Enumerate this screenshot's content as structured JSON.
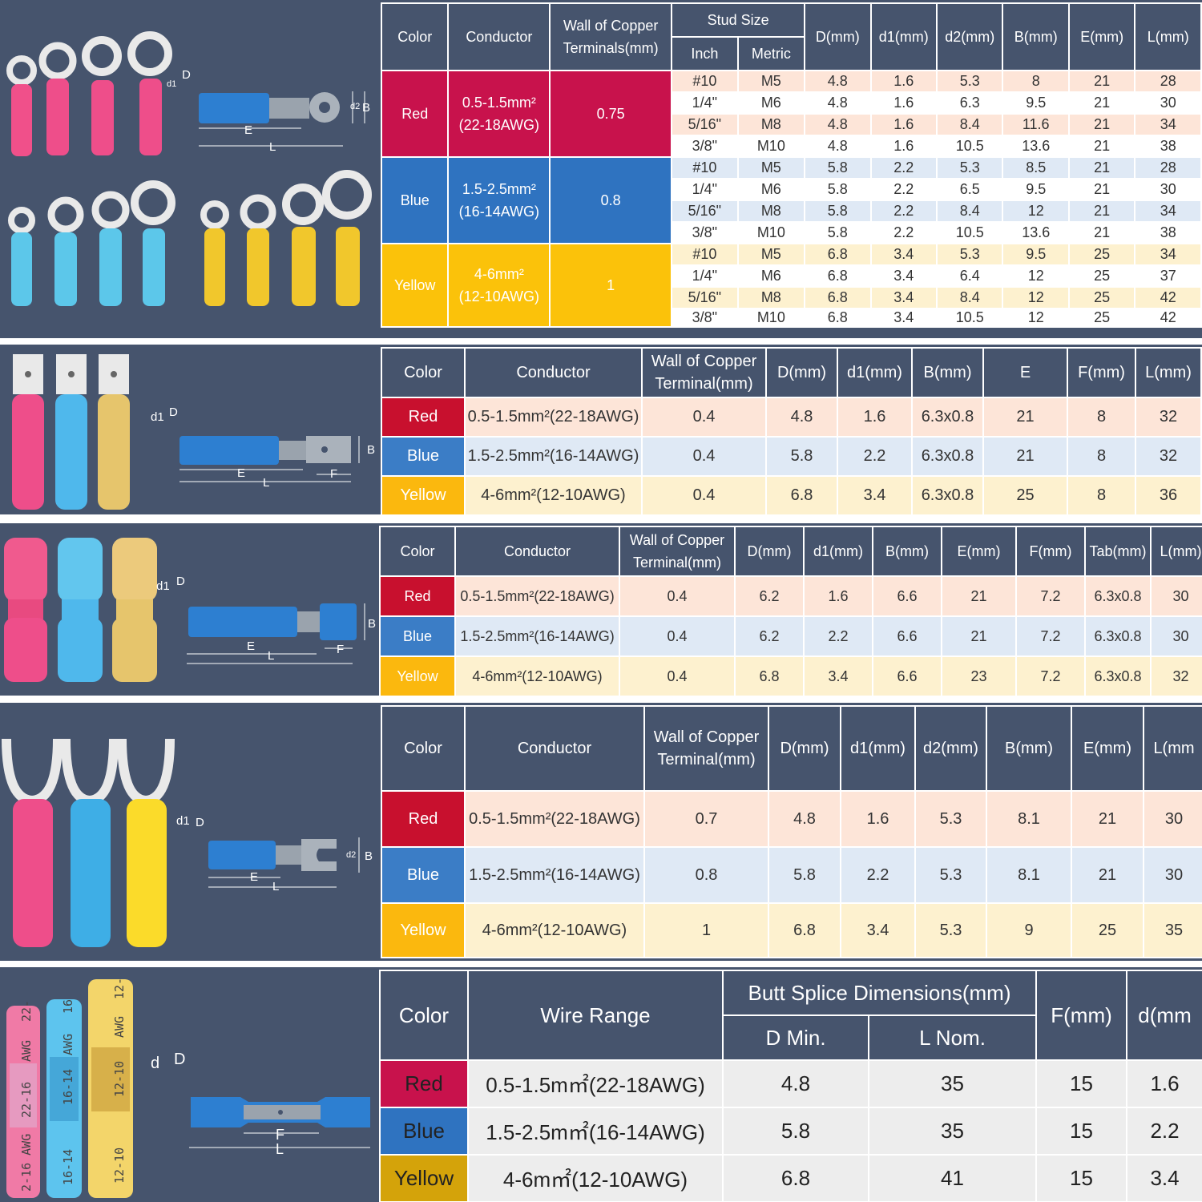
{
  "ring": {
    "headers": {
      "color": "Color",
      "conductor": "Conductor",
      "wall": "Wall of Copper Terminals(mm)",
      "stud": "Stud Size",
      "inch": "Inch",
      "metric": "Metric",
      "D": "D(mm)",
      "d1": "d1(mm)",
      "d2": "d2(mm)",
      "B": "B(mm)",
      "E": "E(mm)",
      "L": "L(mm)"
    },
    "groups": [
      {
        "color": "Red",
        "conductor_a": "0.5-1.5mm²",
        "conductor_b": "(22-18AWG)",
        "wall": "0.75",
        "rows": [
          [
            "#10",
            "M5",
            "4.8",
            "1.6",
            "5.3",
            "8",
            "21",
            "28"
          ],
          [
            "1/4\"",
            "M6",
            "4.8",
            "1.6",
            "6.3",
            "9.5",
            "21",
            "30"
          ],
          [
            "5/16\"",
            "M8",
            "4.8",
            "1.6",
            "8.4",
            "11.6",
            "21",
            "34"
          ],
          [
            "3/8\"",
            "M10",
            "4.8",
            "1.6",
            "10.5",
            "13.6",
            "21",
            "38"
          ]
        ]
      },
      {
        "color": "Blue",
        "conductor_a": "1.5-2.5mm²",
        "conductor_b": "(16-14AWG)",
        "wall": "0.8",
        "rows": [
          [
            "#10",
            "M5",
            "5.8",
            "2.2",
            "5.3",
            "8.5",
            "21",
            "28"
          ],
          [
            "1/4\"",
            "M6",
            "5.8",
            "2.2",
            "6.5",
            "9.5",
            "21",
            "30"
          ],
          [
            "5/16\"",
            "M8",
            "5.8",
            "2.2",
            "8.4",
            "12",
            "21",
            "34"
          ],
          [
            "3/8\"",
            "M10",
            "5.8",
            "2.2",
            "10.5",
            "13.6",
            "21",
            "38"
          ]
        ]
      },
      {
        "color": "Yellow",
        "conductor_a": "4-6mm²",
        "conductor_b": "(12-10AWG)",
        "wall": "1",
        "rows": [
          [
            "#10",
            "M5",
            "6.8",
            "3.4",
            "5.3",
            "9.5",
            "25",
            "34"
          ],
          [
            "1/4\"",
            "M6",
            "6.8",
            "3.4",
            "6.4",
            "12",
            "25",
            "37"
          ],
          [
            "5/16\"",
            "M8",
            "6.8",
            "3.4",
            "8.4",
            "12",
            "25",
            "42"
          ],
          [
            "3/8\"",
            "M10",
            "6.8",
            "3.4",
            "10.5",
            "12",
            "25",
            "42"
          ]
        ]
      }
    ],
    "diagram": {
      "d1": "d1",
      "D": "D",
      "d2": "d2",
      "B": "B",
      "E": "E",
      "L": "L"
    }
  },
  "male": {
    "headers": [
      "Color",
      "Conductor",
      "Wall of Copper Terminal(mm)",
      "D(mm)",
      "d1(mm)",
      "B(mm)",
      "E",
      "F(mm)",
      "L(mm)"
    ],
    "rows": [
      {
        "color": "Red",
        "cells": [
          "0.5-1.5mm²(22-18AWG)",
          "0.4",
          "4.8",
          "1.6",
          "6.3x0.8",
          "21",
          "8",
          "32"
        ]
      },
      {
        "color": "Blue",
        "cells": [
          "1.5-2.5mm²(16-14AWG)",
          "0.4",
          "5.8",
          "2.2",
          "6.3x0.8",
          "21",
          "8",
          "32"
        ]
      },
      {
        "color": "Yellow",
        "cells": [
          "4-6mm²(12-10AWG)",
          "0.4",
          "6.8",
          "3.4",
          "6.3x0.8",
          "25",
          "8",
          "36"
        ]
      }
    ],
    "diagram": {
      "d1": "d1",
      "D": "D",
      "B": "B",
      "E": "E",
      "L": "L",
      "F": "F"
    }
  },
  "female": {
    "headers": [
      "Color",
      "Conductor",
      "Wall of Copper Terminal(mm)",
      "D(mm)",
      "d1(mm)",
      "B(mm)",
      "E(mm)",
      "F(mm)",
      "Tab(mm)",
      "L(mm)"
    ],
    "rows": [
      {
        "color": "Red",
        "cells": [
          "0.5-1.5mm²(22-18AWG)",
          "0.4",
          "6.2",
          "1.6",
          "6.6",
          "21",
          "7.2",
          "6.3x0.8",
          "30"
        ]
      },
      {
        "color": "Blue",
        "cells": [
          "1.5-2.5mm²(16-14AWG)",
          "0.4",
          "6.2",
          "2.2",
          "6.6",
          "21",
          "7.2",
          "6.3x0.8",
          "30"
        ]
      },
      {
        "color": "Yellow",
        "cells": [
          "4-6mm²(12-10AWG)",
          "0.4",
          "6.8",
          "3.4",
          "6.6",
          "23",
          "7.2",
          "6.3x0.8",
          "32"
        ]
      }
    ],
    "diagram": {
      "d1": "d1",
      "D": "D",
      "B": "B",
      "E": "E",
      "L": "L",
      "F": "F"
    }
  },
  "fork": {
    "headers": [
      "Color",
      "Conductor",
      "Wall of Copper Terminal(mm)",
      "D(mm)",
      "d1(mm)",
      "d2(mm)",
      "B(mm)",
      "E(mm)",
      "L(mm"
    ],
    "rows": [
      {
        "color": "Red",
        "cells": [
          "0.5-1.5mm²(22-18AWG)",
          "0.7",
          "4.8",
          "1.6",
          "5.3",
          "8.1",
          "21",
          "30"
        ]
      },
      {
        "color": "Blue",
        "cells": [
          "1.5-2.5mm²(16-14AWG)",
          "0.8",
          "5.8",
          "2.2",
          "5.3",
          "8.1",
          "21",
          "30"
        ]
      },
      {
        "color": "Yellow",
        "cells": [
          "4-6mm²(12-10AWG)",
          "1",
          "6.8",
          "3.4",
          "5.3",
          "9",
          "25",
          "35"
        ]
      }
    ],
    "diagram": {
      "d1": "d1",
      "D": "D",
      "d2": "d2",
      "B": "B",
      "E": "E",
      "L": "L"
    }
  },
  "butt": {
    "headers": {
      "color": "Color",
      "wire": "Wire Range",
      "group": "Butt Splice Dimensions(mm)",
      "dmin": "D Min.",
      "lnom": "L Nom.",
      "F": "F(mm)",
      "d": "d(mm"
    },
    "rows": [
      {
        "color": "Red",
        "cells": [
          "0.5-1.5m㎡(22-18AWG)",
          "4.8",
          "35",
          "15",
          "1.6"
        ]
      },
      {
        "color": "Blue",
        "cells": [
          "1.5-2.5m㎡(16-14AWG)",
          "5.8",
          "35",
          "15",
          "2.2"
        ]
      },
      {
        "color": "Yellow",
        "cells": [
          "4-6m㎡(12-10AWG)",
          "6.8",
          "41",
          "15",
          "3.4"
        ]
      }
    ],
    "diagram": {
      "d": "d",
      "D": "D",
      "F": "F",
      "L": "L"
    },
    "awg_labels": {
      "red_top": "22-",
      "red_awg": "AWG",
      "red_mid": "22-16",
      "red_bot": "2-16 AWG",
      "blue_top": "16",
      "blue_awg": "AWG",
      "blue_mid": "16-14",
      "blue_bot": "16-14",
      "yellow_top": "12-",
      "yellow_awg": "AWG",
      "yellow_mid": "12-10",
      "yellow_bot": "12-10"
    }
  }
}
